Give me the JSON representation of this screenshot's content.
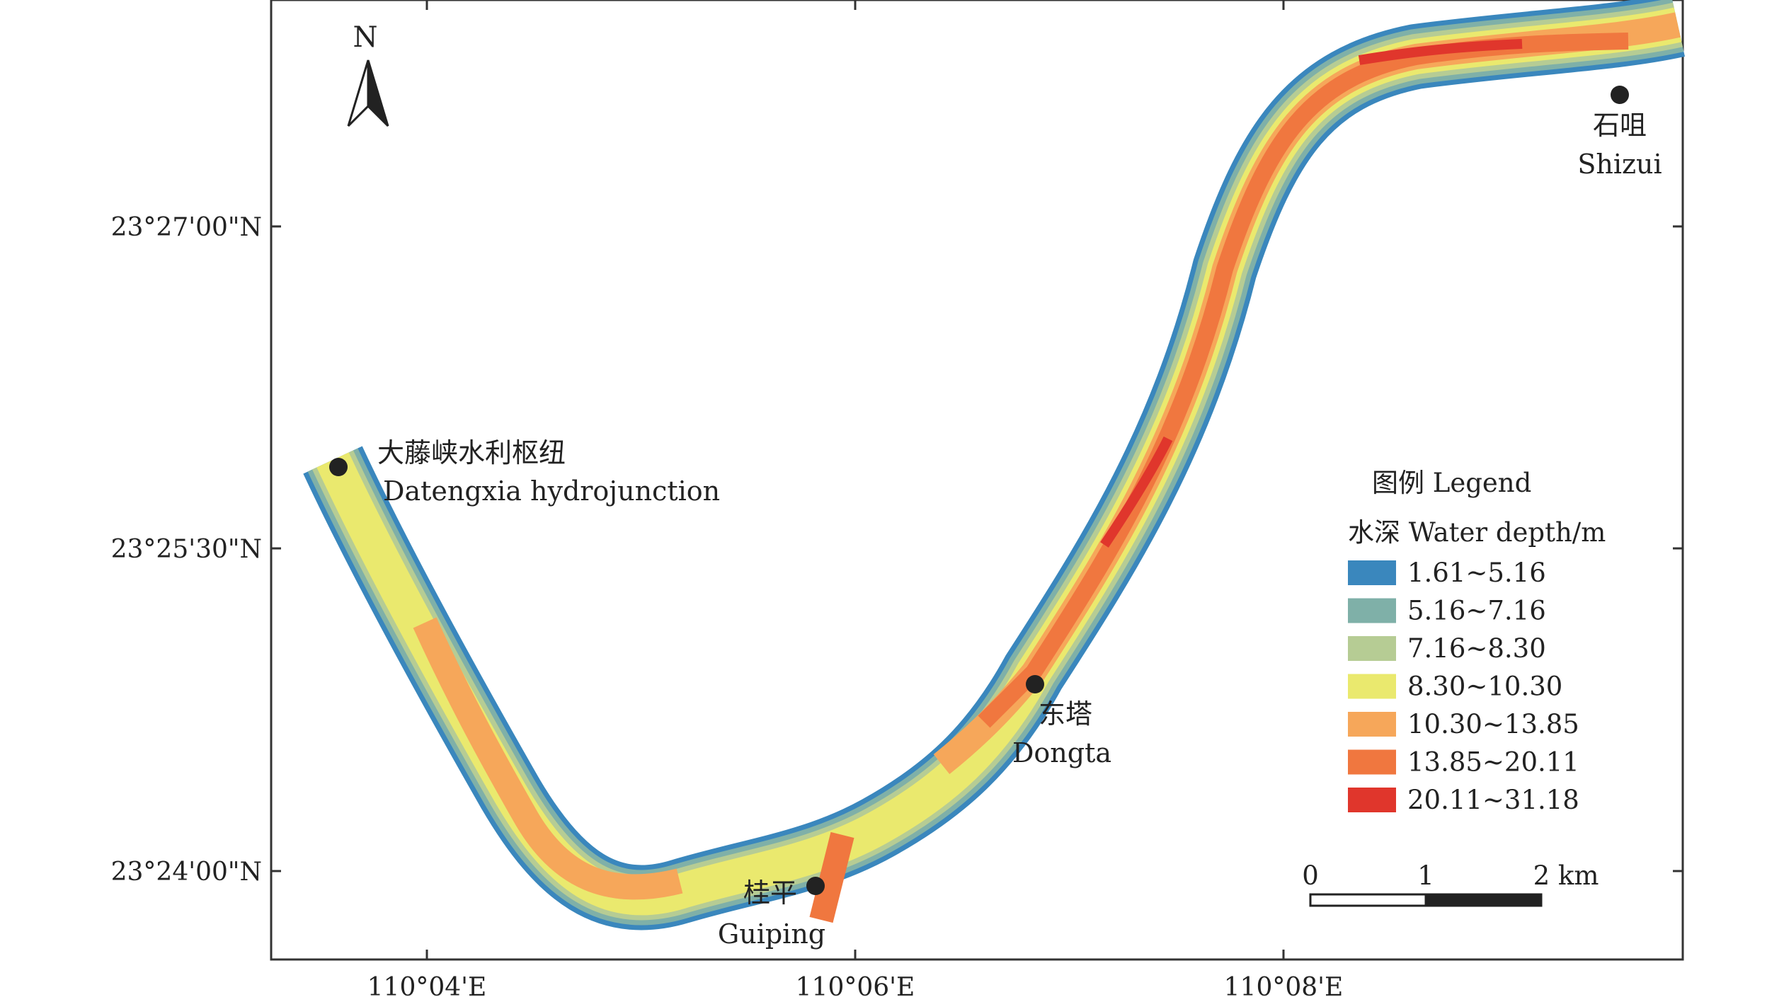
{
  "map": {
    "north_label": "N",
    "lat_labels": [
      "23°27'00\"N",
      "23°25'30\"N",
      "23°24'00\"N"
    ],
    "lon_labels": [
      "110°04'E",
      "110°06'E",
      "110°08'E"
    ],
    "places": [
      {
        "cn": "大藤峡水利枢纽",
        "en": "Datengxia hydrojunction"
      },
      {
        "cn": "桂平",
        "en": "Guiping"
      },
      {
        "cn": "东塔",
        "en": "Dongta"
      },
      {
        "cn": "石咀",
        "en": "Shizui"
      }
    ],
    "legend": {
      "title": "图例 Legend",
      "subtitle": "水深 Water depth/m",
      "items": [
        {
          "label": "1.61~5.16",
          "color": "#3a87bd"
        },
        {
          "label": "5.16~7.16",
          "color": "#7fb0a8"
        },
        {
          "label": "7.16~8.30",
          "color": "#b6cc94"
        },
        {
          "label": "8.30~10.30",
          "color": "#eae96e"
        },
        {
          "label": "10.30~13.85",
          "color": "#f6a75a"
        },
        {
          "label": "13.85~20.11",
          "color": "#f0773f"
        },
        {
          "label": "20.11~31.18",
          "color": "#e0362c"
        }
      ]
    },
    "scale_bar": {
      "labels": [
        "0",
        "1",
        "2 km"
      ]
    }
  }
}
